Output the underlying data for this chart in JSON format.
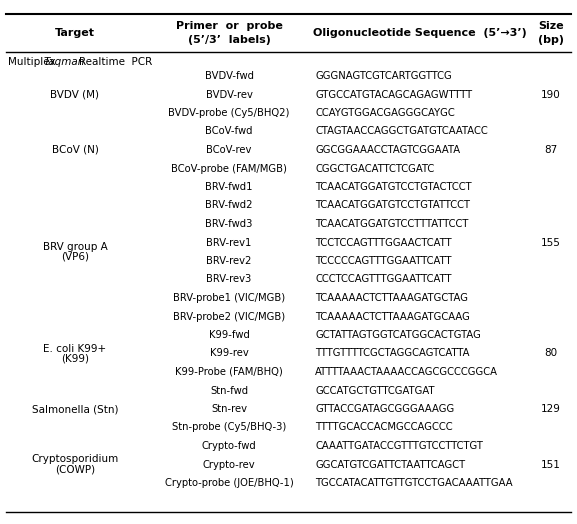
{
  "title": "Multiplex TaqmanRealtime PCR",
  "col_headers": [
    "Target",
    "Primer or probe\n(5’/3’  labels)",
    "Oligonucleotide Sequence  (5’→3’)",
    "Size\n(bp)"
  ],
  "rows": [
    {
      "target": "BVDV (M)",
      "primer": "BVDV-fwd",
      "sequence": "GGGNAGTCGTCARTGGTTCG",
      "size": ""
    },
    {
      "target": "",
      "primer": "BVDV-rev",
      "sequence": "GTGCCATGTACAGCAGAGWTTTT",
      "size": "190"
    },
    {
      "target": "",
      "primer": "BVDV-probe (Cy5/BHQ2)",
      "sequence": "CCAYGTGGACGAGGGCAYGC",
      "size": ""
    },
    {
      "target": "BCoV (N)",
      "primer": "BCoV-fwd",
      "sequence": "CTAGTAACCAGGCTGATGTCAATACC",
      "size": ""
    },
    {
      "target": "",
      "primer": "BCoV-rev",
      "sequence": "GGCGGAAACCTAGTCGGAATA",
      "size": "87"
    },
    {
      "target": "",
      "primer": "BCoV-probe (FAM/MGB)",
      "sequence": "CGGCTGACATTCTCGATC",
      "size": ""
    },
    {
      "target": "BRV group A\n(VP6)",
      "primer": "BRV-fwd1",
      "sequence": "TCAACATGGATGTCCTGTACTCCT",
      "size": ""
    },
    {
      "target": "",
      "primer": "BRV-fwd2",
      "sequence": "TCAACATGGATGTCCTGTATTCCT",
      "size": ""
    },
    {
      "target": "",
      "primer": "BRV-fwd3",
      "sequence": "TCAACATGGATGTCCTTTATTCCT",
      "size": ""
    },
    {
      "target": "",
      "primer": "BRV-rev1",
      "sequence": "TCCTCCAGTTTGGAACTCATT",
      "size": "155"
    },
    {
      "target": "",
      "primer": "BRV-rev2",
      "sequence": "TCCCCCAGTTTGGAATTCATT",
      "size": ""
    },
    {
      "target": "",
      "primer": "BRV-rev3",
      "sequence": "CCCTCCAGTTTGGAATTCATT",
      "size": ""
    },
    {
      "target": "",
      "primer": "BRV-probe1 (VIC/MGB)",
      "sequence": "TCAAAAACTCTTAAAGATGCTAG",
      "size": ""
    },
    {
      "target": "",
      "primer": "BRV-probe2 (VIC/MGB)",
      "sequence": "TCAAAAACTCTTAAAGATGCAAG",
      "size": ""
    },
    {
      "target": "E. coli K99+\n(K99)",
      "primer": "K99-fwd",
      "sequence": "GCTATTAGTGGTCATGGCACTGTAG",
      "size": ""
    },
    {
      "target": "",
      "primer": "K99-rev",
      "sequence": "TTTGTTTTCGCTAGGCAGTCATTA",
      "size": "80"
    },
    {
      "target": "",
      "primer": "K99-Probe (FAM/BHQ)",
      "sequence": "ATTTTAAACTAAAACCAGCGCCCGGCA",
      "size": ""
    },
    {
      "target": "Salmonella (Stn)",
      "primer": "Stn-fwd",
      "sequence": "GCCATGCTGTTCGATGAT",
      "size": ""
    },
    {
      "target": "",
      "primer": "Stn-rev",
      "sequence": "GTTACCGATAGCGGGAAAGG",
      "size": "129"
    },
    {
      "target": "",
      "primer": "Stn-probe (Cy5/BHQ-3)",
      "sequence": "TTTTGCACCACMGCCAGCCC",
      "size": ""
    },
    {
      "target": "Cryptosporidium\n(COWP)",
      "primer": "Crypto-fwd",
      "sequence": "CAAATTGATACCGTTTGTCCTTCTGT",
      "size": ""
    },
    {
      "target": "",
      "primer": "Crypto-rev",
      "sequence": "GGCATGTCGATTCTAATTCAGCT",
      "size": "151"
    },
    {
      "target": "",
      "primer": "Crypto-probe (JOE/BHQ-1)",
      "sequence": "TGCCATACATTGTTGTCCTGACAAATTGAA",
      "size": ""
    }
  ],
  "bg_color": "#ffffff",
  "text_color": "#000000",
  "header_bg": "#e8e8e8"
}
